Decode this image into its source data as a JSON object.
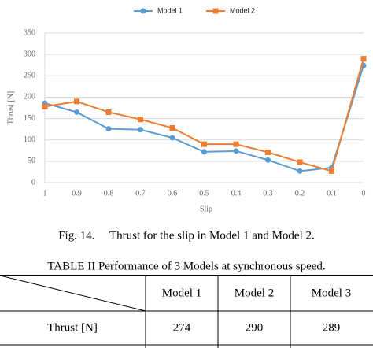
{
  "chart_data": {
    "type": "line",
    "categories": [
      "1",
      "0.9",
      "0.8",
      "0.7",
      "0.6",
      "0.5",
      "0.4",
      "0.3",
      "0.2",
      "0.1",
      "0"
    ],
    "series": [
      {
        "name": "Model 1",
        "color": "#5b9bd5",
        "values": [
          186,
          165,
          126,
          124,
          105,
          72,
          74,
          53,
          27,
          35,
          274
        ]
      },
      {
        "name": "Model 2",
        "color": "#ed7d31",
        "values": [
          178,
          190,
          165,
          148,
          128,
          90,
          90,
          71,
          48,
          27,
          290
        ]
      }
    ],
    "x_label": "Slip",
    "y_label": "Thrust [N]",
    "ylim": [
      0,
      350
    ],
    "yticks": [
      0,
      50,
      100,
      150,
      200,
      250,
      300,
      350
    ],
    "grid": true,
    "legend": "top"
  },
  "figure_caption": "Fig. 14.  Thrust for the slip in Model 1 and Model 2.",
  "table": {
    "title": "TABLE II Performance of 3 Models at synchronous speed.",
    "columns": [
      "Model 1",
      "Model 2",
      "Model 3"
    ],
    "rows": [
      [
        "Thrust [N]",
        274,
        290,
        289
      ]
    ]
  }
}
